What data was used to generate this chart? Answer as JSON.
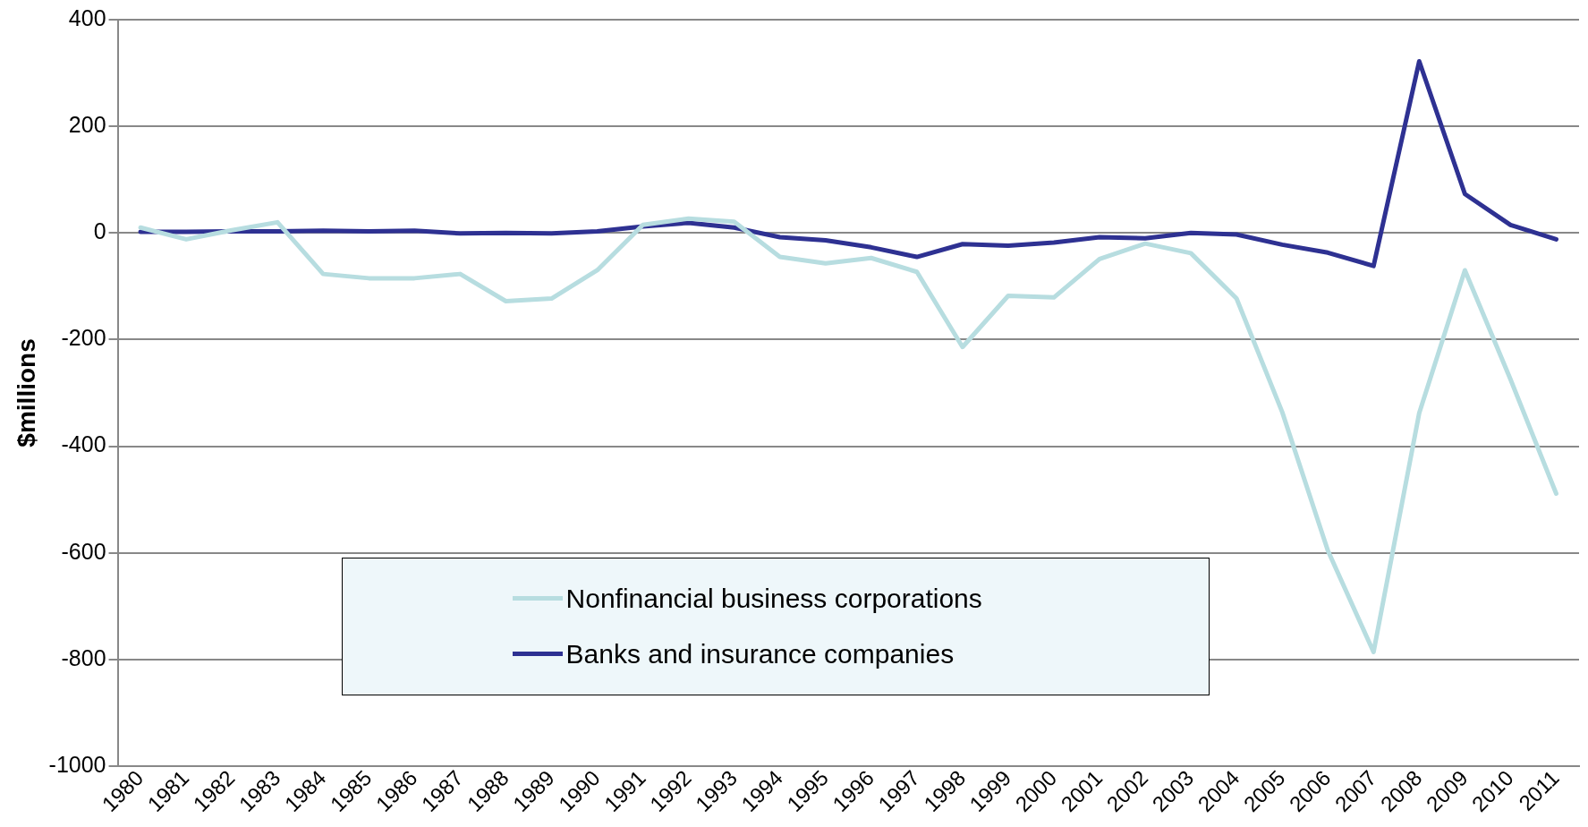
{
  "chart_data": {
    "type": "line",
    "ylabel": "$millions",
    "categories": [
      "1980",
      "1981",
      "1982",
      "1983",
      "1984",
      "1985",
      "1986",
      "1987",
      "1988",
      "1989",
      "1990",
      "1991",
      "1992",
      "1993",
      "1994",
      "1995",
      "1996",
      "1997",
      "1998",
      "1999",
      "2000",
      "2001",
      "2002",
      "2003",
      "2004",
      "2005",
      "2006",
      "2007",
      "2008",
      "2009",
      "2010",
      "2011"
    ],
    "series": [
      {
        "name": "Nonfinancial business corporations",
        "color": "#b7dde0",
        "values": [
          10,
          -12,
          5,
          20,
          -77,
          -85,
          -85,
          -77,
          -128,
          -123,
          -70,
          15,
          27,
          21,
          -45,
          -57,
          -47,
          -73,
          -214,
          -118,
          -121,
          -49,
          -20,
          -38,
          -123,
          -336,
          -596,
          -786,
          -338,
          -70,
          -275,
          -489
        ]
      },
      {
        "name": "Banks and insurance companies",
        "color": "#2e3192",
        "values": [
          2,
          2,
          3,
          3,
          4,
          3,
          4,
          -1,
          0,
          -1,
          3,
          12,
          19,
          10,
          -8,
          -14,
          -27,
          -45,
          -21,
          -24,
          -18,
          -8,
          -10,
          0,
          -3,
          -22,
          -37,
          -62,
          322,
          73,
          15,
          -12
        ]
      }
    ],
    "ylim": [
      -1000,
      400
    ],
    "yticks": [
      -1000,
      -800,
      -600,
      -400,
      -200,
      0,
      200,
      400
    ],
    "grid": "y",
    "legend": "bottom",
    "marker": "none",
    "line_style": "solid"
  }
}
